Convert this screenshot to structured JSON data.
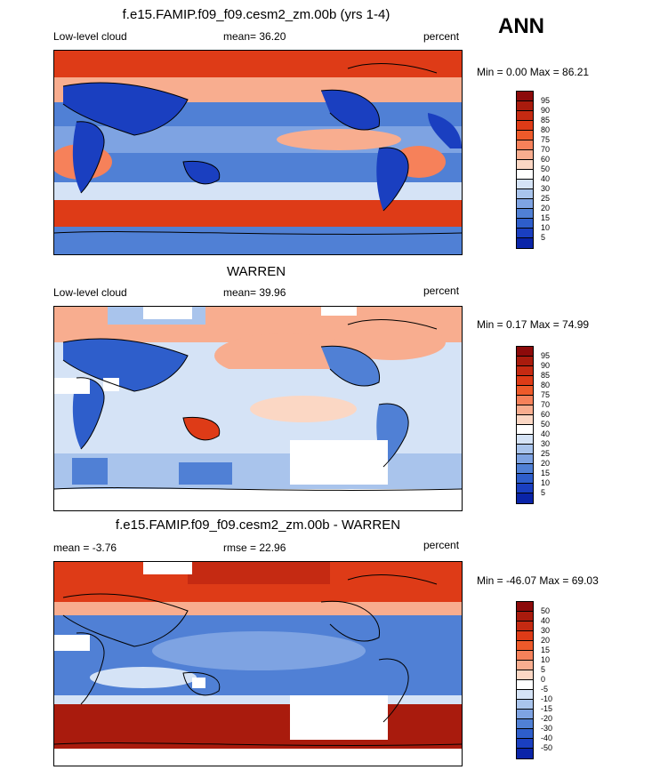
{
  "season": "ANN",
  "panels": [
    {
      "id": "model",
      "title": "f.e15.FAMIP.f09_f09.cesm2_zm.00b (yrs 1-4)",
      "left_label": "Low-level cloud",
      "center_label": "mean=  36.20",
      "right_label": "percent",
      "minmax": "Min =    0.00 Max =  86.21",
      "colorbar": {
        "labels": [
          "95",
          "90",
          "85",
          "80",
          "75",
          "70",
          "60",
          "50",
          "40",
          "30",
          "25",
          "20",
          "15",
          "10",
          "5"
        ],
        "colors": [
          "#8c0a0a",
          "#a91b0d",
          "#c52a12",
          "#de3b17",
          "#ee5a2a",
          "#f6815a",
          "#f8ad8f",
          "#fbd7c4",
          "#ffffff",
          "#d5e3f6",
          "#a9c4ec",
          "#7ea3e2",
          "#5080d5",
          "#2e5ecb",
          "#1a3fc0",
          "#0a24a8"
        ]
      }
    },
    {
      "id": "obs",
      "title": "WARREN",
      "left_label": "Low-level cloud",
      "center_label": "mean=  39.96",
      "right_label": "percent",
      "minmax": "Min =   0.17 Max =  74.99",
      "colorbar": {
        "labels": [
          "95",
          "90",
          "85",
          "80",
          "75",
          "70",
          "60",
          "50",
          "40",
          "30",
          "25",
          "20",
          "15",
          "10",
          "5"
        ],
        "colors": [
          "#8c0a0a",
          "#a91b0d",
          "#c52a12",
          "#de3b17",
          "#ee5a2a",
          "#f6815a",
          "#f8ad8f",
          "#fbd7c4",
          "#ffffff",
          "#d5e3f6",
          "#a9c4ec",
          "#7ea3e2",
          "#5080d5",
          "#2e5ecb",
          "#1a3fc0",
          "#0a24a8"
        ]
      }
    },
    {
      "id": "diff",
      "title": "f.e15.FAMIP.f09_f09.cesm2_zm.00b - WARREN",
      "left_label": "mean =  -3.76",
      "center_label": "rmse =  22.96",
      "right_label": "percent",
      "minmax": "Min = -46.07 Max =  69.03",
      "colorbar": {
        "labels": [
          "50",
          "40",
          "30",
          "20",
          "15",
          "10",
          "5",
          "0",
          "-5",
          "-10",
          "-15",
          "-20",
          "-30",
          "-40",
          "-50"
        ],
        "colors": [
          "#8c0a0a",
          "#a91b0d",
          "#c52a12",
          "#de3b17",
          "#ee5a2a",
          "#f6815a",
          "#f8ad8f",
          "#fbd7c4",
          "#ffffff",
          "#d5e3f6",
          "#a9c4ec",
          "#7ea3e2",
          "#5080d5",
          "#2e5ecb",
          "#1a3fc0",
          "#0a24a8"
        ]
      }
    }
  ]
}
